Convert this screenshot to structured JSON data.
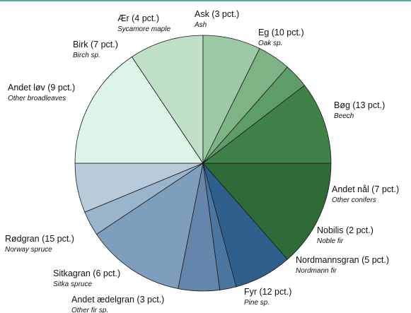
{
  "chart_data": {
    "type": "pie",
    "slices": [
      {
        "label": "Bøg (13 pct.)",
        "sublabel": "Beech",
        "value": 13,
        "color": "#2e6b37"
      },
      {
        "label": "Andet nål (7 pct.)",
        "sublabel": "Other conifers",
        "value": 7,
        "color": "#2f5f8d"
      },
      {
        "label": "Nobilis (2 pct.)",
        "sublabel": "Noble fir",
        "value": 2,
        "color": "#4a76a0"
      },
      {
        "label": "Nordmannsgran (5 pct.)",
        "sublabel": "Nordmann fir",
        "value": 5,
        "color": "#6386aa"
      },
      {
        "label": "Fyr (12 pct.)",
        "sublabel": "Pine sp.",
        "value": 12,
        "color": "#7e9ebd"
      },
      {
        "label": "Andet ædelgran (3 pct.)",
        "sublabel": "Other fir sp.",
        "value": 3,
        "color": "#9ab4cb"
      },
      {
        "label": "Sitkagran (6 pct.)",
        "sublabel": "Sitka spruce",
        "value": 6,
        "color": "#b7cad9"
      },
      {
        "label": "Rødgran (15 pct.)",
        "sublabel": "Norway spruce",
        "value": 15,
        "color": "#ddf4e6"
      },
      {
        "label": "Andet løv (9 pct.)",
        "sublabel": "Other broadleaves",
        "value": 9,
        "color": "#bfe0c7"
      },
      {
        "label": "Birk (7 pct.)",
        "sublabel": "Birch sp.",
        "value": 7,
        "color": "#9ccaa4"
      },
      {
        "label": "Ær (4 pct.)",
        "sublabel": "Sycamore maple",
        "value": 4,
        "color": "#7eb485"
      },
      {
        "label": "Ask (3 pct.)",
        "sublabel": "Ash",
        "value": 3,
        "color": "#5f9d68"
      },
      {
        "label": "Eg (10 pct.)",
        "sublabel": "Oak sp.",
        "value": 10,
        "color": "#3f8147"
      }
    ]
  }
}
